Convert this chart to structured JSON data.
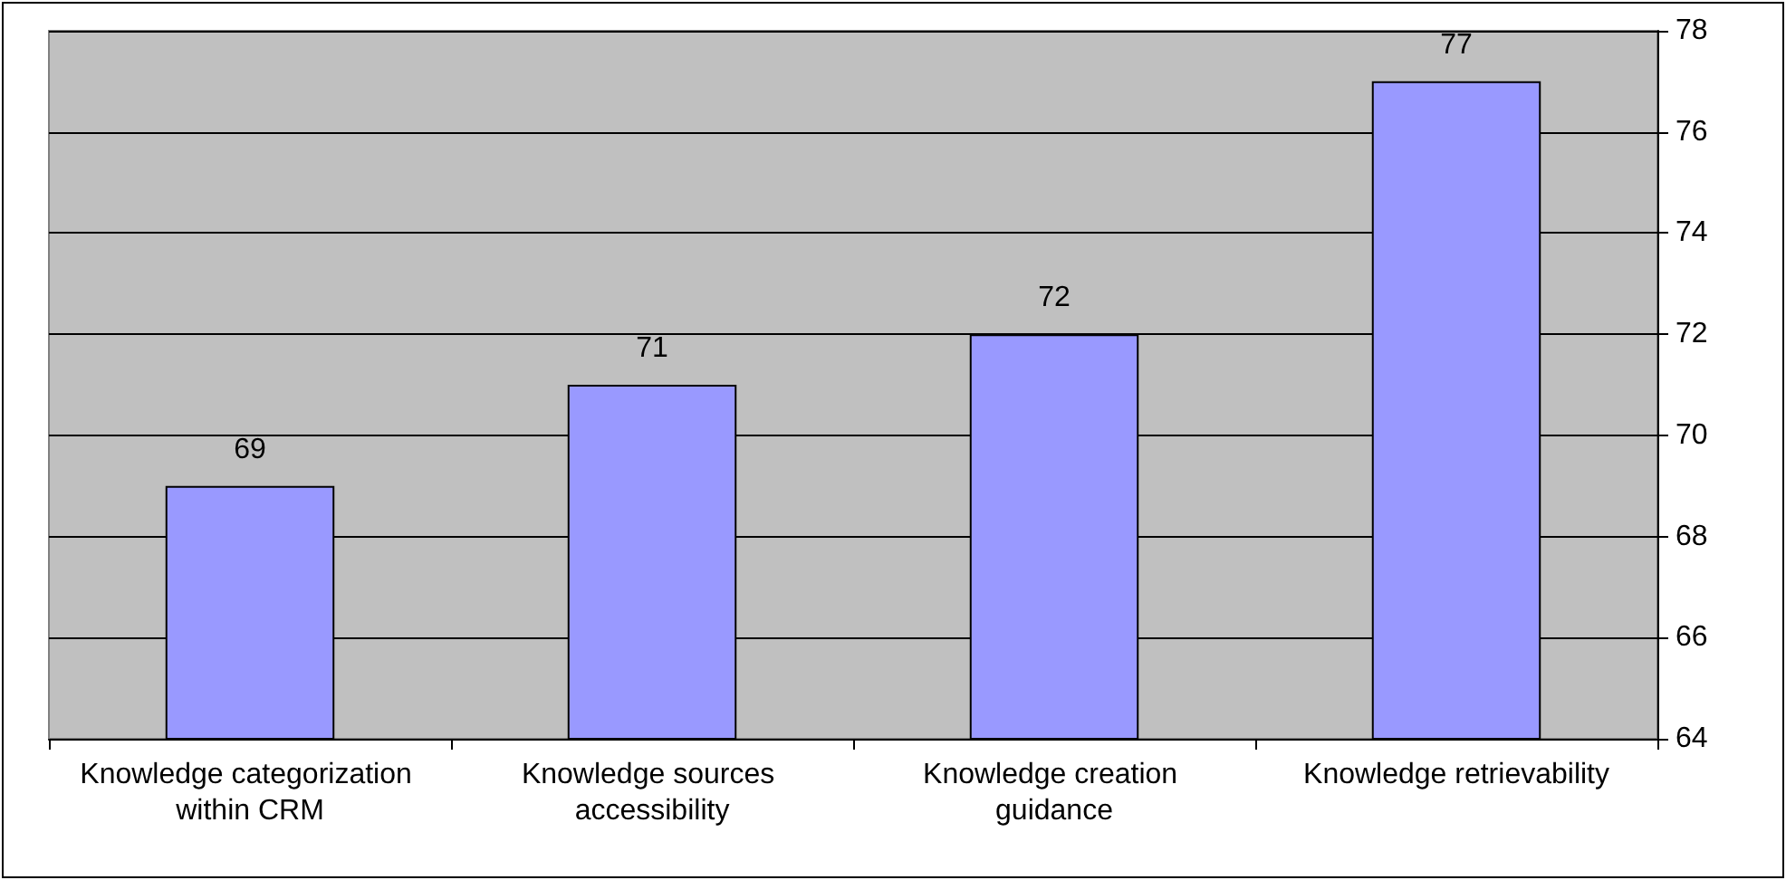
{
  "chart_data": {
    "type": "bar",
    "categories": [
      "Knowledge categorization within CRM",
      "Knowledge sources accessibility",
      "Knowledge creation guidance",
      "Knowledge retrievability"
    ],
    "values": [
      69,
      71,
      72,
      77
    ],
    "color": "#9999ff",
    "ylim": [
      64,
      78
    ],
    "yticks": [
      64,
      66,
      68,
      70,
      72,
      74,
      76,
      78
    ],
    "grid": true,
    "data_labels": true
  }
}
